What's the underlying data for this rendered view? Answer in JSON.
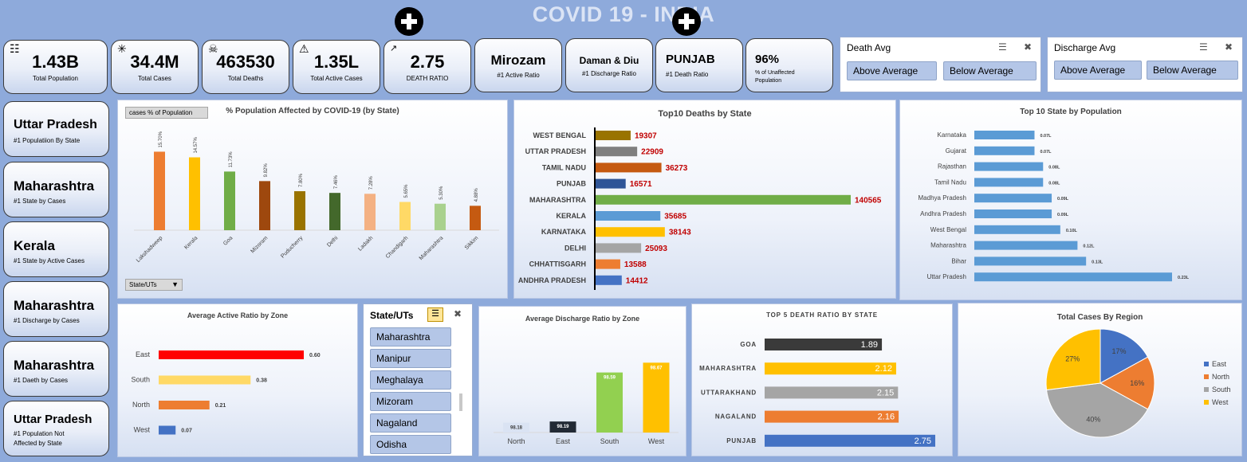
{
  "header": {
    "title": "COVID 19 - INDIA"
  },
  "kpis": [
    {
      "value": "1.43B",
      "label": "Total Population",
      "icon": "people-icon"
    },
    {
      "value": "34.4M",
      "label": "Total Cases",
      "icon": "virus-icon"
    },
    {
      "value": "463530",
      "label": "Total Deaths",
      "icon": "skull-icon"
    },
    {
      "value": "1.35L",
      "label": "Total Active Cases",
      "icon": "warning-icon"
    },
    {
      "value": "2.75",
      "label": "DEATH RATIO",
      "icon": "chart-icon"
    },
    {
      "value": "Mirozam",
      "label": "#1 Active Ratio"
    },
    {
      "value": "Daman & Diu",
      "label": "#1 Discharge Ratio"
    },
    {
      "value": "PUNJAB",
      "label": "#1 Death Ratio"
    },
    {
      "value": "96%",
      "label": "% of Unaffected Population"
    }
  ],
  "slicers": {
    "death_avg": {
      "title": "Death Avg",
      "options": [
        "Above Average",
        "Below Average"
      ]
    },
    "discharge_avg": {
      "title": "Discharge Avg",
      "options": [
        "Above Average",
        "Below Average"
      ]
    },
    "states": {
      "title": "State/UTs",
      "items": [
        "Maharashtra",
        "Manipur",
        "Meghalaya",
        "Mizoram",
        "Nagaland",
        "Odisha"
      ]
    }
  },
  "side_cards": [
    {
      "value": "Uttar Pradesh",
      "label": "#1 Populatiion By State"
    },
    {
      "value": "Maharashtra",
      "label": "#1 State by Cases"
    },
    {
      "value": "Kerala",
      "label": "#1 State by Active Cases"
    },
    {
      "value": "Maharashtra",
      "label": "#1 Discharge by Cases"
    },
    {
      "value": "Maharashtra",
      "label": "#1 Daeth by Cases"
    },
    {
      "value": "Uttar Pradesh",
      "label": "#1 Population Not Affected by State"
    }
  ],
  "pivot_buttons": {
    "field": "cases % of Population",
    "filter": "State/UTs"
  },
  "chart_data": [
    {
      "type": "bar",
      "title": "% Population Affected by COVID-19 (by State)",
      "categories": [
        "Lakshadweep",
        "Kerala",
        "Goa",
        "Mizoram",
        "Puducherry",
        "Delhi",
        "Ladakh",
        "Chandigarh",
        "Maharashtra",
        "Sikkim"
      ],
      "values": [
        15.7,
        14.57,
        11.73,
        9.82,
        7.8,
        7.46,
        7.28,
        5.65,
        5.3,
        4.88
      ],
      "labels": [
        "15.70%",
        "14.57%",
        "11.73%",
        "9.82%",
        "7.80%",
        "7.46%",
        "7.28%",
        "5.65%",
        "5.30%",
        "4.88%"
      ],
      "colors": [
        "#ed7d31",
        "#ffc000",
        "#70ad47",
        "#9e480e",
        "#997300",
        "#43682b",
        "#f4b183",
        "#ffd966",
        "#a9d18e",
        "#c55a11"
      ],
      "ylim": [
        0,
        18
      ]
    },
    {
      "type": "bar",
      "orientation": "horizontal",
      "title": "Top10 Deaths by State",
      "categories": [
        "WEST BENGAL",
        "UTTAR PRADESH",
        "TAMIL NADU",
        "PUNJAB",
        "MAHARASHTRA",
        "KERALA",
        "KARNATAKA",
        "DELHI",
        "CHHATTISGARH",
        "ANDHRA PRADESH"
      ],
      "values": [
        19307,
        22909,
        36273,
        16571,
        140565,
        35685,
        38143,
        25093,
        13588,
        14412
      ],
      "colors": [
        "#997300",
        "#7f7f7f",
        "#c55a11",
        "#2f5597",
        "#70ad47",
        "#5b9bd5",
        "#ffc000",
        "#a5a5a5",
        "#ed7d31",
        "#4472c4"
      ],
      "label_color": "#c00000"
    },
    {
      "type": "bar",
      "orientation": "horizontal",
      "title": "Top 10 State by Population",
      "categories": [
        "Karnataka",
        "Gujarat",
        "Rajasthan",
        "Tamil Nadu",
        "Madhya Pradesh",
        "Andhra Pradesh",
        "West Bengal",
        "Maharashtra",
        "Bihar",
        "Uttar Pradesh"
      ],
      "values": [
        0.07,
        0.07,
        0.08,
        0.08,
        0.09,
        0.09,
        0.1,
        0.12,
        0.13,
        0.23
      ],
      "labels": [
        "0.07L",
        "0.07L",
        "0.08L",
        "0.08L",
        "0.09L",
        "0.09L",
        "0.10L",
        "0.12L",
        "0.13L",
        "0.23L"
      ],
      "color": "#5b9bd5"
    },
    {
      "type": "bar",
      "orientation": "horizontal",
      "title": "Average Active Ratio by Zone",
      "categories": [
        "East",
        "South",
        "North",
        "West"
      ],
      "values": [
        0.6,
        0.38,
        0.21,
        0.07
      ],
      "labels": [
        "0.60",
        "0.38",
        "0.21",
        "0.07"
      ],
      "colors": [
        "#ff0000",
        "#ffd966",
        "#ed7d31",
        "#4472c4"
      ]
    },
    {
      "type": "bar",
      "title": "Average Discharge Ratio by Zone",
      "categories": [
        "North",
        "East",
        "South",
        "West"
      ],
      "values": [
        98.18,
        98.19,
        98.59,
        98.67
      ],
      "labels": [
        "98.18",
        "98.19",
        "98.59",
        "98.67"
      ],
      "colors": [
        "#dae3f3",
        "#222a35",
        "#92d050",
        "#ffc000"
      ],
      "ylim": [
        98.1,
        98.75
      ]
    },
    {
      "type": "bar",
      "orientation": "horizontal",
      "title": "TOP 5 DEATH RATIO BY STATE",
      "categories": [
        "GOA",
        "MAHARASHTRA",
        "UTTARAKHAND",
        "NAGALAND",
        "PUNJAB"
      ],
      "values": [
        1.89,
        2.12,
        2.15,
        2.16,
        2.75
      ],
      "labels": [
        "1.89",
        "2.12",
        "2.15",
        "2.16",
        "2.75"
      ],
      "colors": [
        "#3a3a3a",
        "#ffc000",
        "#a5a5a5",
        "#ed7d31",
        "#4472c4"
      ]
    },
    {
      "type": "pie",
      "title": "Total Cases By Region",
      "categories": [
        "East",
        "North",
        "South",
        "West"
      ],
      "values": [
        17,
        16,
        40,
        27
      ],
      "labels": [
        "17%",
        "16%",
        "40%",
        "27%"
      ],
      "colors": [
        "#4472c4",
        "#ed7d31",
        "#a5a5a5",
        "#ffc000"
      ],
      "legend": "right"
    }
  ]
}
